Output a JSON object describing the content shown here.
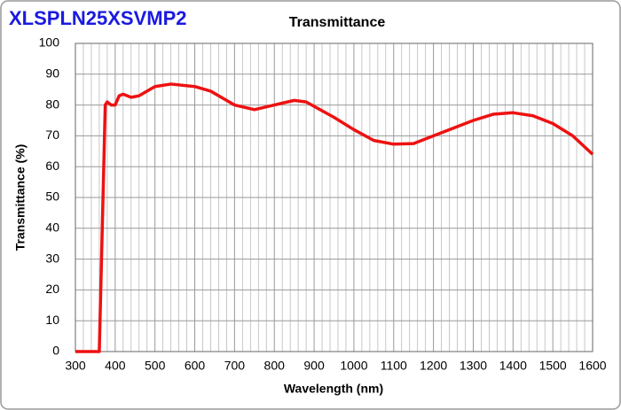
{
  "chart_data": {
    "type": "line",
    "product": "XLSPLN25XSVMP2",
    "title": "Transmittance",
    "xlabel": "Wavelength (nm)",
    "ylabel": "Transmittance (%)",
    "x": [
      300,
      360,
      375,
      380,
      390,
      400,
      410,
      420,
      440,
      460,
      500,
      540,
      600,
      640,
      700,
      750,
      800,
      850,
      880,
      950,
      1000,
      1050,
      1100,
      1150,
      1200,
      1300,
      1350,
      1400,
      1450,
      1500,
      1550,
      1600
    ],
    "series": [
      {
        "name": "Transmittance",
        "color": "#ee1111",
        "values": [
          0,
          0,
          80,
          81,
          80,
          80,
          83,
          83.5,
          82.5,
          83,
          86,
          86.8,
          86,
          84.5,
          80,
          78.5,
          80,
          81.5,
          81,
          76,
          72,
          68.5,
          67.3,
          67.5,
          70,
          75,
          77,
          77.5,
          76.5,
          74,
          70,
          64
        ]
      }
    ],
    "xlim": [
      300,
      1600
    ],
    "xticks": [
      300,
      400,
      500,
      600,
      700,
      800,
      900,
      1000,
      1100,
      1200,
      1300,
      1400,
      1500,
      1600
    ],
    "ylim": [
      0,
      100
    ],
    "yticks": [
      0,
      10,
      20,
      30,
      40,
      50,
      60,
      70,
      80,
      90,
      100
    ],
    "grid": true
  }
}
